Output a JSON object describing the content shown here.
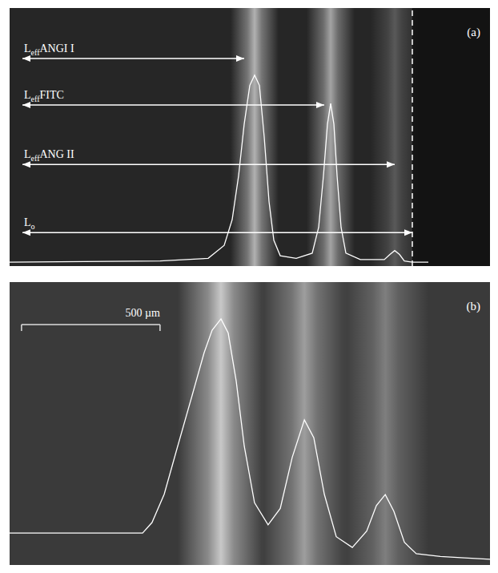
{
  "chart_data": [
    {
      "type": "line",
      "title": "(a)",
      "color": "#ffffff",
      "grid": false,
      "tick_labels": false,
      "xlim": [
        0,
        600
      ],
      "ylim": [
        0,
        100
      ],
      "x": [
        0,
        188,
        248,
        268,
        278,
        286,
        293,
        300,
        306,
        312,
        318,
        324,
        330,
        338,
        358,
        378,
        386,
        392,
        397,
        401,
        405,
        409,
        414,
        420,
        438,
        468,
        475,
        481,
        487,
        493,
        503,
        523
      ],
      "values": [
        1.5,
        2,
        3,
        8,
        18,
        35,
        55,
        70,
        74,
        70,
        50,
        25,
        10,
        4,
        3,
        5,
        15,
        35,
        55,
        63,
        55,
        35,
        15,
        5,
        2.5,
        2.5,
        4.5,
        6,
        4.5,
        2,
        1.5,
        1.5
      ],
      "annotations": [
        {
          "text": "L",
          "sub": "eff",
          "after": "ANGI I",
          "x_start": 16,
          "x_end": 293,
          "y": 80.4
        },
        {
          "text": "L",
          "sub": "eff",
          "after": "FITC",
          "x_start": 16,
          "x_end": 393,
          "y": 62.4
        },
        {
          "text": "L",
          "sub": "eff",
          "after": "ANG II",
          "x_start": 16,
          "x_end": 481,
          "y": 39.4
        },
        {
          "text": "L",
          "sub": "o",
          "x_start": 16,
          "x_end": 503,
          "y": 13
        }
      ],
      "reference_line": {
        "x": 503,
        "line_style": "dashed"
      }
    },
    {
      "type": "line",
      "title": "(b)",
      "color": "#ffffff",
      "grid": false,
      "tick_labels": false,
      "xlim": [
        0,
        1734
      ],
      "ylim": [
        0,
        100
      ],
      "x": [
        0,
        480,
        514,
        558,
        601,
        659,
        702,
        731,
        763,
        789,
        818,
        847,
        884,
        933,
        977,
        1020,
        1064,
        1098,
        1136,
        1179,
        1237,
        1289,
        1324,
        1356,
        1387,
        1425,
        1468,
        1555,
        1642,
        1734
      ],
      "values": [
        11.3,
        11.3,
        15,
        25,
        40,
        60,
        75,
        83,
        87,
        82,
        65,
        42,
        22,
        14.2,
        20,
        38,
        51.3,
        45,
        25,
        10,
        6.2,
        12,
        21,
        24.9,
        19,
        8,
        4,
        3,
        2.5,
        2
      ],
      "scale_bar": {
        "label": "500 µm",
        "x_start": 43,
        "x_end": 543,
        "y": 85
      }
    }
  ]
}
